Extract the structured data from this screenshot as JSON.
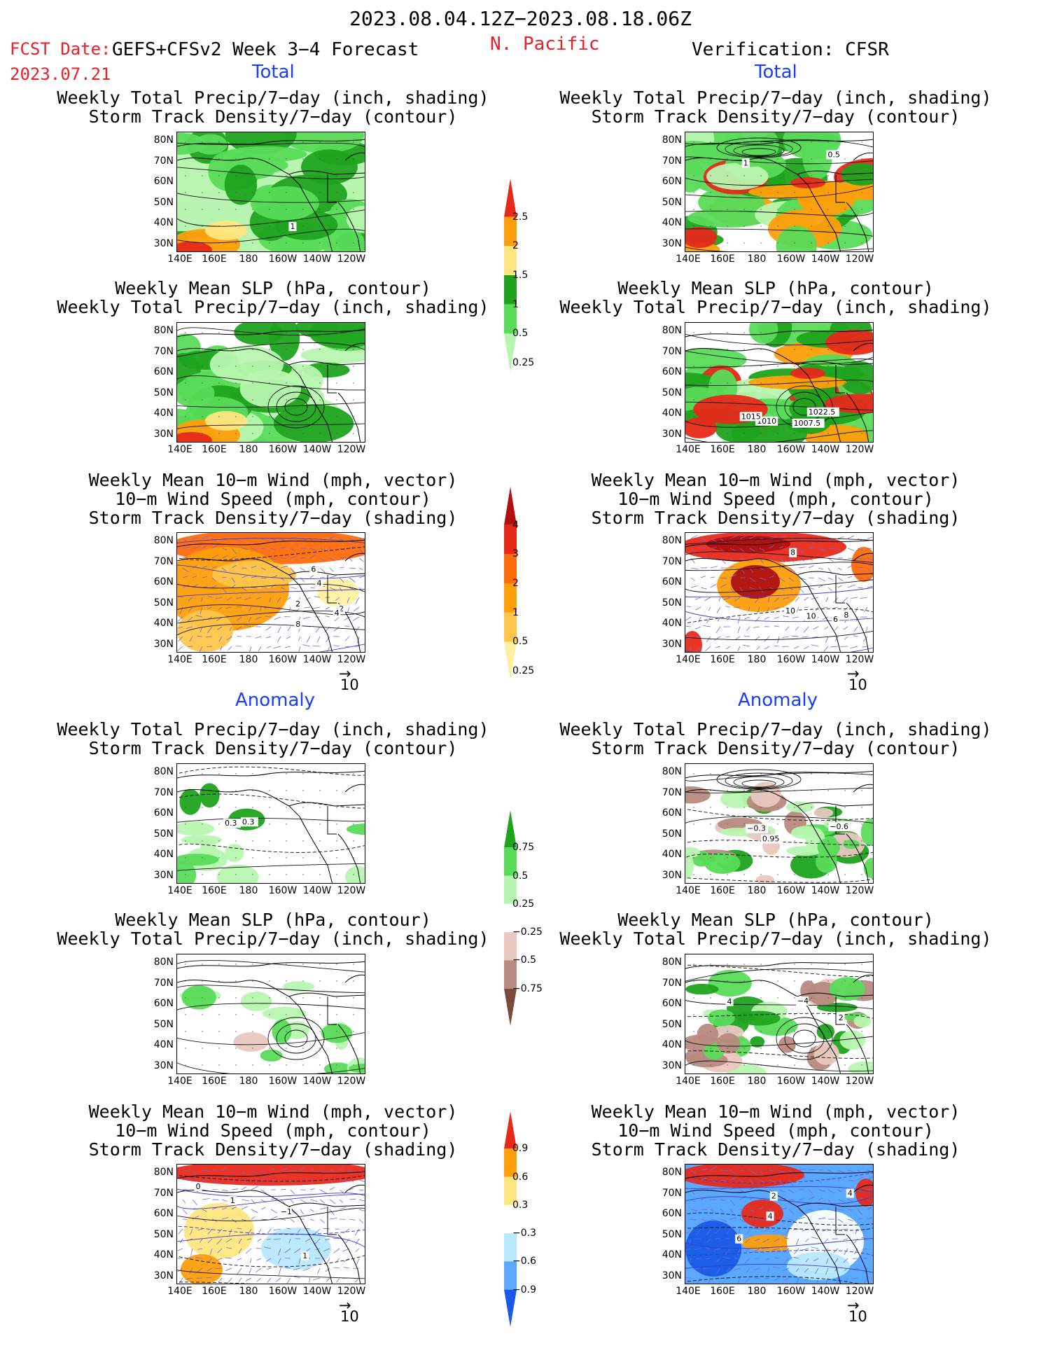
{
  "header": {
    "date_range": "2023.08.04.12Z−2023.08.18.06Z",
    "fcst_label": "FCST Date:",
    "fcst_model": "GEFS+CFSv2 Week 3−4 Forecast",
    "fcst_date": "2023.07.21",
    "region": "N. Pacific",
    "verification": "Verification: CFSR"
  },
  "sections": {
    "total": "Total",
    "anomaly": "Anomaly"
  },
  "panel_titles": {
    "precip_track": [
      "Weekly Total Precip/7−day (inch, shading)",
      "Storm Track Density/7−day (contour)"
    ],
    "slp_precip": [
      "Weekly Mean SLP (hPa, contour)",
      "Weekly Total Precip/7−day (inch, shading)"
    ],
    "wind_track": [
      "Weekly Mean 10−m Wind (mph, vector)",
      "10−m Wind Speed (mph, contour)",
      "Storm Track Density/7−day (shading)"
    ]
  },
  "axes": {
    "lat_ticks": [
      "80N",
      "70N",
      "60N",
      "50N",
      "40N",
      "30N"
    ],
    "lon_ticks": [
      "140E",
      "160E",
      "180",
      "160W",
      "140W",
      "120W"
    ]
  },
  "vector_ref": "10",
  "colorbars": {
    "precip_total": {
      "labels": [
        "2.5",
        "2",
        "1.5",
        "1",
        "0.5",
        "0.25"
      ],
      "colors": [
        "#e8291a",
        "#ff9e0a",
        "#ffe680",
        "#1fa31f",
        "#58db58",
        "#b8f5b0"
      ]
    },
    "track_total": {
      "labels": [
        "4",
        "3",
        "2",
        "1",
        "0.5",
        "0.25"
      ],
      "colors": [
        "#b01010",
        "#e8291a",
        "#ff6a0a",
        "#ff9e0a",
        "#ffc64a",
        "#fff0a0"
      ]
    },
    "precip_anom": {
      "labels": [
        "0.75",
        "0.5",
        "0.25",
        "−0.25",
        "−0.5",
        "−0.75"
      ],
      "colors": [
        "#1fa31f",
        "#58db58",
        "#b8f5b0",
        "#ffffff",
        "#e8c8c0",
        "#b88a80",
        "#7a4a3a"
      ]
    },
    "track_anom": {
      "labels": [
        "0.9",
        "0.6",
        "0.3",
        "−0.3",
        "−0.6",
        "−0.9"
      ],
      "colors": [
        "#e8291a",
        "#ff9e0a",
        "#ffe680",
        "#ffffff",
        "#b8e8ff",
        "#5aa8ff",
        "#1a5ae8"
      ]
    }
  },
  "contour_labels": {
    "r0l": [
      "1"
    ],
    "r0r": [
      "0.5",
      "1"
    ],
    "r1r": [
      "1010",
      "1007.5",
      "1015",
      "1022.5"
    ],
    "r2l": [
      "2",
      "2",
      "4",
      "4",
      "8",
      "6"
    ],
    "r2r": [
      "6",
      "8",
      "10",
      "8",
      "10"
    ],
    "r3l": [
      "0.3",
      "0.3"
    ],
    "r3r": [
      "0.95",
      "−0.3",
      "−0.6"
    ],
    "r4r": [
      "2",
      "−4",
      "4"
    ],
    "r5l": [
      "1",
      "0",
      "1",
      "−1"
    ],
    "r5r": [
      "4",
      "4",
      "2",
      "6"
    ]
  }
}
